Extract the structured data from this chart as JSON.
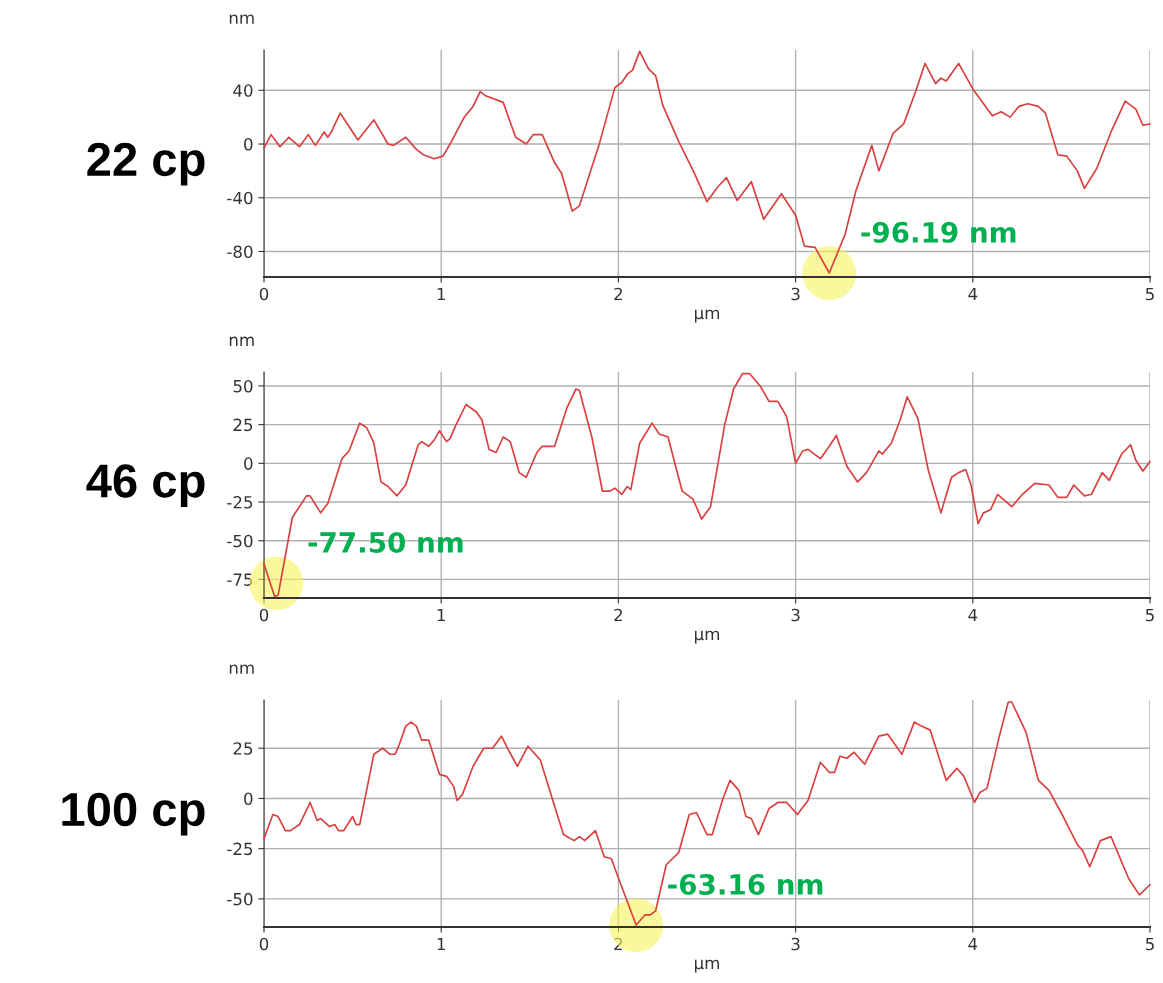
{
  "chart_data": [
    {
      "type": "line",
      "title": "22 cp",
      "xlabel": "µm",
      "ylabel": "nm",
      "xlim": [
        0,
        5
      ],
      "xticks": [
        0,
        1,
        2,
        3,
        4,
        5
      ],
      "ylim": [
        -99,
        70
      ],
      "yticks": [
        -80,
        -40,
        0,
        40
      ],
      "grid": true,
      "annotations": [
        {
          "text": "-96.19 nm",
          "x": 3.19,
          "y": -96.19
        }
      ],
      "series": [
        {
          "color": "#d9403f",
          "x": [
            0,
            0.04,
            0.09,
            0.14,
            0.2,
            0.25,
            0.29,
            0.34,
            0.36,
            0.38,
            0.43,
            0.48,
            0.53,
            0.62,
            0.7,
            0.73,
            0.8,
            0.86,
            0.9,
            0.96,
            1.01,
            1.05,
            1.13,
            1.18,
            1.22,
            1.25,
            1.35,
            1.42,
            1.48,
            1.52,
            1.57,
            1.64,
            1.68,
            1.74,
            1.78,
            1.89,
            1.98,
            2.02,
            2.05,
            2.08,
            2.12,
            2.17,
            2.21,
            2.25,
            2.28,
            2.34,
            2.43,
            2.5,
            2.56,
            2.61,
            2.67,
            2.75,
            2.82,
            2.92,
            3.0,
            3.05,
            3.11,
            3.19,
            3.28,
            3.34,
            3.43,
            3.47,
            3.55,
            3.61,
            3.68,
            3.73,
            3.79,
            3.82,
            3.85,
            3.92,
            4.0,
            4.11,
            4.16,
            4.21,
            4.26,
            4.31,
            4.37,
            4.41,
            4.48,
            4.53,
            4.59,
            4.63,
            4.7,
            4.78,
            4.86,
            4.92,
            4.96,
            5.0
          ],
          "values": [
            -3,
            7,
            -2,
            5,
            -2,
            7,
            -1,
            9,
            5,
            9,
            23,
            13,
            3,
            18,
            0,
            -1,
            5,
            -4,
            -8,
            -11,
            -9,
            0,
            20,
            28,
            39,
            36,
            31,
            5,
            0,
            7,
            7,
            -14,
            -22,
            -50,
            -46,
            -1,
            42,
            46,
            52,
            55,
            69,
            56,
            51,
            29,
            20,
            2,
            -22,
            -43,
            -32,
            -25,
            -42,
            -28,
            -56,
            -37,
            -53,
            -76,
            -77,
            -96,
            -67,
            -35,
            -1,
            -20,
            8,
            15,
            40,
            60,
            45,
            49,
            47,
            60,
            41,
            21,
            24,
            20,
            28,
            30,
            28,
            23,
            -8,
            -9,
            -20,
            -33,
            -18,
            9,
            32,
            26,
            14,
            15
          ]
        }
      ]
    },
    {
      "type": "line",
      "title": "46 cp",
      "xlabel": "µm",
      "ylabel": "nm",
      "xlim": [
        0,
        5
      ],
      "xticks": [
        0,
        1,
        2,
        3,
        4,
        5
      ],
      "ylim": [
        -87,
        59
      ],
      "yticks": [
        -75,
        -50,
        -25,
        0,
        25,
        50
      ],
      "grid": true,
      "annotations": [
        {
          "text": "-77.50 nm",
          "x": 0.07,
          "y": -77.5
        }
      ],
      "series": [
        {
          "color": "#d9403f",
          "x": [
            0,
            0.06,
            0.08,
            0.16,
            0.24,
            0.26,
            0.32,
            0.36,
            0.44,
            0.48,
            0.54,
            0.58,
            0.62,
            0.66,
            0.7,
            0.75,
            0.8,
            0.87,
            0.89,
            0.93,
            0.96,
            0.99,
            1.03,
            1.05,
            1.08,
            1.14,
            1.2,
            1.23,
            1.27,
            1.31,
            1.35,
            1.39,
            1.44,
            1.48,
            1.54,
            1.57,
            1.64,
            1.71,
            1.76,
            1.78,
            1.85,
            1.91,
            1.95,
            1.98,
            2.02,
            2.05,
            2.07,
            2.12,
            2.19,
            2.23,
            2.28,
            2.36,
            2.42,
            2.47,
            2.52,
            2.6,
            2.65,
            2.7,
            2.74,
            2.8,
            2.85,
            2.9,
            2.95,
            3.0,
            3.04,
            3.07,
            3.14,
            3.19,
            3.23,
            3.29,
            3.35,
            3.4,
            3.47,
            3.49,
            3.54,
            3.59,
            3.63,
            3.69,
            3.75,
            3.82,
            3.88,
            3.92,
            3.96,
            3.99,
            4.03,
            4.06,
            4.1,
            4.14,
            4.22,
            4.28,
            4.35,
            4.43,
            4.48,
            4.53,
            4.57,
            4.63,
            4.67,
            4.73,
            4.77,
            4.84,
            4.89,
            4.92,
            4.96,
            5.0
          ],
          "values": [
            -65,
            -86,
            -85,
            -35,
            -21,
            -21,
            -32,
            -26,
            3,
            8,
            26,
            23,
            13,
            -12,
            -15,
            -21,
            -14,
            12,
            14,
            11,
            15,
            21,
            14,
            16,
            24,
            38,
            33,
            28,
            9,
            7,
            17,
            14,
            -6,
            -9,
            7,
            11,
            11,
            36,
            48,
            47,
            17,
            -18,
            -18,
            -16,
            -20,
            -15,
            -17,
            13,
            26,
            19,
            17,
            -18,
            -23,
            -36,
            -28,
            25,
            48,
            58,
            58,
            50,
            40,
            40,
            30,
            0,
            8,
            9,
            3,
            11,
            18,
            -2,
            -12,
            -6,
            8,
            6,
            13,
            28,
            43,
            29,
            -5,
            -32,
            -9,
            -6,
            -4,
            -14,
            -39,
            -32,
            -30,
            -20,
            -28,
            -20,
            -13,
            -14,
            -22,
            -22,
            -14,
            -21,
            -20,
            -6,
            -11,
            6,
            12,
            2,
            -5,
            1
          ]
        }
      ]
    },
    {
      "type": "line",
      "title": "100 cp",
      "xlabel": "µm",
      "ylabel": "nm",
      "xlim": [
        0,
        5
      ],
      "xticks": [
        0,
        1,
        2,
        3,
        4,
        5
      ],
      "ylim": [
        -64,
        49
      ],
      "yticks": [
        -50,
        -25,
        0,
        25
      ],
      "grid": true,
      "annotations": [
        {
          "text": "-63.16 nm",
          "x": 2.1,
          "y": -63.16
        }
      ],
      "series": [
        {
          "color": "#d9403f",
          "x": [
            0,
            0.05,
            0.08,
            0.12,
            0.15,
            0.2,
            0.25,
            0.26,
            0.3,
            0.32,
            0.37,
            0.4,
            0.42,
            0.45,
            0.5,
            0.52,
            0.54,
            0.62,
            0.67,
            0.71,
            0.74,
            0.76,
            0.8,
            0.83,
            0.86,
            0.89,
            0.93,
            0.99,
            1.03,
            1.07,
            1.09,
            1.12,
            1.18,
            1.24,
            1.29,
            1.34,
            1.38,
            1.43,
            1.49,
            1.56,
            1.63,
            1.69,
            1.75,
            1.78,
            1.81,
            1.87,
            1.92,
            1.96,
            2.01,
            2.1,
            2.15,
            2.18,
            2.21,
            2.27,
            2.34,
            2.4,
            2.44,
            2.5,
            2.53,
            2.59,
            2.63,
            2.68,
            2.72,
            2.75,
            2.79,
            2.85,
            2.9,
            2.95,
            3.01,
            3.07,
            3.14,
            3.19,
            3.22,
            3.25,
            3.29,
            3.33,
            3.39,
            3.47,
            3.52,
            3.6,
            3.67,
            3.71,
            3.76,
            3.85,
            3.91,
            3.95,
            4.01,
            4.04,
            4.08,
            4.15,
            4.2,
            4.22,
            4.3,
            4.37,
            4.43,
            4.51,
            4.59,
            4.62,
            4.66,
            4.72,
            4.78,
            4.88,
            4.94,
            5.0
          ],
          "values": [
            -20,
            -8,
            -9,
            -16,
            -16,
            -13,
            -4,
            -2,
            -11,
            -10,
            -14,
            -13,
            -16,
            -16,
            -9,
            -13,
            -13,
            22,
            25,
            22,
            22,
            26,
            36,
            38,
            36,
            29,
            29,
            12,
            11,
            6,
            -1,
            2,
            16,
            25,
            25,
            31,
            24,
            16,
            26,
            19,
            -1,
            -18,
            -21,
            -19,
            -21,
            -16,
            -29,
            -30,
            -42,
            -63,
            -58,
            -58,
            -56,
            -33,
            -27,
            -8,
            -7,
            -18,
            -18,
            0,
            9,
            4,
            -9,
            -10,
            -18,
            -5,
            -2,
            -2,
            -8,
            -1,
            18,
            13,
            13,
            21,
            20,
            23,
            17,
            31,
            32,
            22,
            38,
            36,
            34,
            9,
            15,
            11,
            -2,
            3,
            5,
            31,
            48,
            48,
            33,
            9,
            4,
            -9,
            -23,
            -26,
            -34,
            -21,
            -19,
            -40,
            -48,
            -43
          ]
        }
      ]
    }
  ]
}
